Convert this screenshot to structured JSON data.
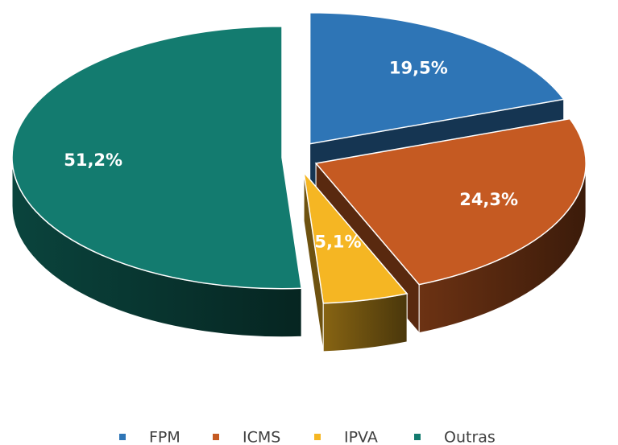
{
  "chart_data": {
    "type": "pie",
    "categories": [
      "FPM",
      "ICMS",
      "IPVA",
      "Outras"
    ],
    "values": [
      19.5,
      24.3,
      5.1,
      51.2
    ],
    "value_labels": [
      "19,5%",
      "24,3%",
      "5,1%",
      "51,2%"
    ],
    "colors": [
      "#2e75b6",
      "#c55a22",
      "#f5b623",
      "#137b6f"
    ],
    "legend": "bottom"
  }
}
